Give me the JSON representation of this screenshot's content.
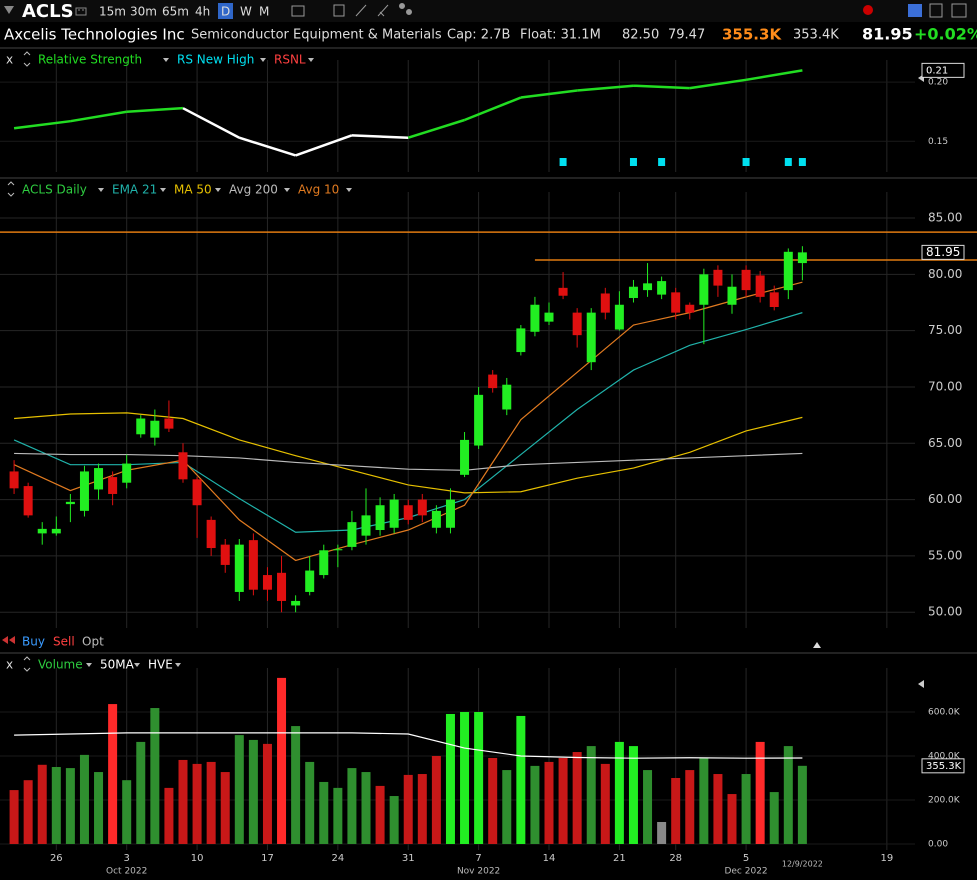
{
  "toolbar": {
    "symbol": "ACLS",
    "intervals": [
      "15m",
      "30m",
      "65m",
      "4h",
      "D",
      "W",
      "M"
    ],
    "active_interval": "D"
  },
  "quote": {
    "name": "Axcelis Technologies Inc",
    "industry": "Semiconductor Equipment & Materials",
    "cap": "Cap: 2.7B",
    "float": "Float: 31.1M",
    "high": "82.50",
    "low": "79.47",
    "volume": "355.3K",
    "avg_volume": "353.4K",
    "last": "81.95",
    "change": "+0.02%"
  },
  "close_label": "x",
  "trade_buttons": [
    "Buy",
    "Sell",
    "Opt"
  ],
  "chart_data": [
    {
      "type": "line",
      "xlim": [
        -1,
        64
      ],
      "ylim": [
        0.124,
        0.212
      ],
      "yticks": [
        0.15,
        {
          "value": 0.2,
          "label": "0.20"
        }
      ],
      "series": [
        {
          "name": "Relative Strength",
          "color": "#22dd22",
          "x": [
            0,
            4,
            8,
            12,
            16,
            20,
            24,
            28,
            32,
            36,
            40,
            44,
            48,
            52,
            56
          ],
          "values": [
            0.161,
            0.167,
            0.175,
            0.178,
            0.153,
            0.138,
            0.155,
            0.153,
            0.168,
            0.187,
            0.193,
            0.197,
            0.195,
            0.202,
            0.21
          ],
          "point_colors": [
            "#ffffff",
            "#22dd22",
            "#22dd22",
            "#22dd22",
            "#ffffff",
            "#ffffff",
            "#ffffff",
            "#ffffff",
            "#22dd22",
            "#22dd22",
            "#22dd22",
            "#22dd22",
            "#22dd22",
            "#22dd22",
            "#22dd22"
          ]
        }
      ],
      "markers": {
        "name": "RS New High",
        "color": "#00e0f0",
        "x": [
          39,
          44,
          46,
          52,
          55,
          56
        ]
      },
      "legend_extra": [
        {
          "name": "RSNL",
          "color": "#ff4040"
        }
      ]
    },
    {
      "type": "candlestick",
      "xlim": [
        -1,
        64
      ],
      "ylim": [
        48.6,
        86.6
      ],
      "yticks": [
        {
          "value": 50,
          "label": "50.00"
        },
        {
          "value": 55,
          "label": "55.00"
        },
        {
          "value": 60,
          "label": "60.00"
        },
        {
          "value": 65,
          "label": "65.00"
        },
        {
          "value": 70,
          "label": "70.00"
        },
        {
          "value": 75,
          "label": "75.00"
        },
        {
          "value": 80,
          "label": "80.00"
        },
        {
          "value": 85,
          "label": "85.00"
        }
      ],
      "grid": true,
      "series": [
        {
          "name": "ACLS Daily",
          "color": "#2ecc40",
          "up_color": "#22ee22",
          "down_color": "#e01010",
          "open": [
            62.5,
            61.2,
            57.0,
            57.0,
            59.6,
            59.0,
            60.9,
            62.0,
            61.5,
            65.8,
            65.5,
            67.2,
            64.2,
            61.8,
            58.2,
            56.0,
            51.8,
            56.4,
            53.3,
            53.5,
            50.6,
            51.8,
            53.3,
            55.5,
            55.8,
            56.8,
            57.3,
            57.5,
            59.5,
            60.0,
            57.5,
            57.5,
            62.2,
            64.8,
            71.1,
            68.0,
            73.1,
            74.9,
            75.8,
            78.8,
            76.6,
            72.2,
            78.3,
            75.1,
            77.9,
            78.6,
            78.2,
            78.4,
            77.3,
            77.3,
            80.4,
            77.3,
            80.4,
            79.9,
            78.4,
            78.6,
            81.0
          ],
          "high": [
            63.5,
            61.5,
            58.0,
            58.5,
            60.5,
            63.0,
            63.2,
            62.5,
            64.0,
            67.5,
            68.0,
            68.8,
            65.0,
            62.0,
            58.5,
            56.5,
            56.5,
            57.0,
            54.0,
            55.0,
            51.5,
            55.0,
            56.0,
            56.0,
            59.0,
            61.0,
            60.2,
            60.5,
            60.0,
            60.5,
            59.5,
            61.0,
            66.0,
            70.0,
            71.5,
            70.8,
            75.5,
            78.0,
            77.5,
            80.2,
            77.0,
            77.0,
            78.8,
            78.5,
            79.5,
            81.0,
            79.8,
            78.8,
            77.5,
            80.5,
            80.8,
            80.0,
            80.8,
            80.3,
            79.0,
            82.3,
            82.5
          ],
          "low": [
            60.5,
            58.4,
            56.0,
            56.8,
            58.0,
            58.5,
            60.0,
            59.5,
            61.0,
            65.5,
            64.8,
            66.0,
            61.5,
            56.6,
            55.0,
            53.5,
            51.0,
            51.5,
            51.0,
            50.0,
            50.0,
            51.5,
            53.0,
            54.0,
            55.5,
            56.0,
            56.8,
            57.0,
            57.8,
            58.0,
            57.0,
            57.0,
            62.0,
            64.5,
            69.5,
            67.5,
            72.8,
            74.5,
            75.5,
            77.8,
            73.5,
            71.5,
            76.0,
            75.0,
            77.5,
            78.0,
            77.8,
            76.0,
            76.0,
            73.8,
            78.0,
            76.5,
            78.0,
            77.5,
            76.8,
            77.8,
            79.47
          ],
          "close": [
            61.0,
            58.6,
            57.4,
            57.4,
            59.8,
            62.5,
            62.8,
            60.5,
            63.2,
            67.2,
            67.0,
            66.3,
            61.8,
            59.5,
            55.7,
            54.2,
            56.0,
            52.0,
            52.0,
            51.0,
            51.0,
            53.7,
            55.5,
            55.6,
            58.0,
            58.6,
            59.5,
            60.0,
            58.2,
            58.6,
            59.0,
            60.0,
            65.3,
            69.3,
            69.9,
            70.2,
            75.2,
            77.3,
            76.6,
            78.1,
            74.6,
            76.6,
            76.6,
            77.3,
            78.9,
            79.2,
            79.4,
            76.6,
            76.6,
            80.0,
            79.0,
            78.9,
            78.6,
            78.0,
            77.1,
            82.0,
            81.95
          ]
        }
      ],
      "lines": [
        {
          "name": "EMA 21",
          "color": "#20b2aa",
          "x": [
            0,
            4,
            8,
            12,
            16,
            20,
            24,
            28,
            32,
            36,
            40,
            44,
            48,
            52,
            56
          ],
          "values": [
            65.3,
            63.1,
            63.1,
            63.3,
            60.1,
            57.1,
            57.3,
            58.4,
            60.0,
            64.0,
            68.0,
            71.5,
            73.7,
            75.1,
            76.6
          ]
        },
        {
          "name": "MA 50",
          "color": "#e6c000",
          "x": [
            0,
            4,
            8,
            12,
            16,
            20,
            24,
            28,
            32,
            36,
            40,
            44,
            48,
            52,
            56
          ],
          "values": [
            67.2,
            67.6,
            67.7,
            67.2,
            65.3,
            63.9,
            62.6,
            61.3,
            60.6,
            60.7,
            61.9,
            62.8,
            64.2,
            66.1,
            67.3
          ]
        },
        {
          "name": "Avg 200",
          "color": "#bbbbbb",
          "x": [
            0,
            4,
            8,
            12,
            16,
            20,
            24,
            28,
            32,
            36,
            40,
            44,
            48,
            52,
            56
          ],
          "values": [
            64.1,
            64.0,
            64.0,
            63.9,
            63.7,
            63.3,
            63.0,
            62.7,
            62.6,
            63.1,
            63.3,
            63.5,
            63.7,
            63.9,
            64.1
          ]
        },
        {
          "name": "Avg 10",
          "color": "#e07a20",
          "x": [
            0,
            4,
            8,
            12,
            16,
            20,
            24,
            28,
            32,
            36,
            40,
            44,
            48,
            52,
            56
          ],
          "values": [
            63.1,
            60.8,
            62.6,
            63.5,
            58.2,
            54.6,
            56.0,
            57.3,
            59.5,
            67.1,
            71.3,
            75.5,
            76.6,
            78.0,
            79.3
          ]
        }
      ],
      "hlines": [
        {
          "value": 83.75,
          "color": "#e07a10"
        },
        {
          "value": 81.27,
          "color": "#e07a10",
          "from_x": 37
        }
      ]
    },
    {
      "type": "bar",
      "xlim": [
        -1,
        64
      ],
      "ylim": [
        -27300,
        763600
      ],
      "yticks": [
        {
          "value": 0,
          "label": "0.00"
        },
        {
          "value": 200000,
          "label": "200.0K"
        },
        {
          "value": 400000,
          "label": "400.0K"
        },
        {
          "value": 600000,
          "label": "600.0K"
        }
      ],
      "xticks": [
        {
          "value": 3,
          "label": "26"
        },
        {
          "value": 8,
          "label": "3"
        },
        {
          "value": 13,
          "label": "10"
        },
        {
          "value": 18,
          "label": "17"
        },
        {
          "value": 23,
          "label": "24"
        },
        {
          "value": 28,
          "label": "31"
        },
        {
          "value": 33,
          "label": "7"
        },
        {
          "value": 38,
          "label": "14"
        },
        {
          "value": 43,
          "label": "21"
        },
        {
          "value": 47,
          "label": "28"
        },
        {
          "value": 52,
          "label": "5"
        },
        {
          "value": 62,
          "label": "19"
        }
      ],
      "month_labels": [
        {
          "value": 8,
          "label": "Oct 2022"
        },
        {
          "value": 33,
          "label": "Nov 2022"
        },
        {
          "value": 52,
          "label": "Dec 2022"
        }
      ],
      "date_marker": {
        "value": 56,
        "label": "12/9/2022"
      },
      "series": [
        {
          "name": "Volume",
          "color": "#2ecc40",
          "values": [
            245000,
            290000,
            360000,
            350000,
            345000,
            405000,
            327000,
            636000,
            290000,
            464000,
            618000,
            255000,
            382000,
            364000,
            373000,
            327000,
            495000,
            473000,
            455000,
            755000,
            536000,
            373000,
            282000,
            255000,
            345000,
            327000,
            264000,
            218000,
            314000,
            318000,
            400000,
            591000,
            600000,
            600000,
            391000,
            336000,
            582000,
            355000,
            373000,
            391000,
            418000,
            445000,
            364000,
            464000,
            445000,
            336000,
            100000,
            300000,
            336000,
            391000,
            318000,
            227000,
            318000,
            464000,
            236000,
            445000,
            355300
          ],
          "value_labels": [
            null,
            null,
            null,
            null,
            null,
            null,
            null,
            null,
            null,
            null,
            null,
            null,
            null,
            null,
            null,
            null,
            null,
            null,
            null,
            null,
            null,
            null,
            null,
            null,
            null,
            null,
            null,
            null,
            null,
            null,
            null,
            null,
            null,
            null,
            null,
            null,
            null,
            null,
            null,
            null,
            null,
            null,
            null,
            null,
            null,
            null,
            null,
            null,
            null,
            null,
            null,
            null,
            null,
            null,
            null,
            null,
            "355.3K"
          ],
          "colors": [
            "#c81818",
            "#c81818",
            "#c81818",
            "#2f8f2f",
            "#2f8f2f",
            "#2f8f2f",
            "#2f8f2f",
            "#ff2a2a",
            "#2f8f2f",
            "#2f8f2f",
            "#2f8f2f",
            "#c81818",
            "#c81818",
            "#c81818",
            "#c81818",
            "#c81818",
            "#2f8f2f",
            "#2f8f2f",
            "#c81818",
            "#ff2a2a",
            "#2f8f2f",
            "#2f8f2f",
            "#2f8f2f",
            "#2f8f2f",
            "#2f8f2f",
            "#2f8f2f",
            "#c81818",
            "#2f8f2f",
            "#c81818",
            "#c81818",
            "#c81818",
            "#22ee22",
            "#22ee22",
            "#22ee22",
            "#c81818",
            "#2f8f2f",
            "#22ee22",
            "#2f8f2f",
            "#c81818",
            "#c81818",
            "#c81818",
            "#2f8f2f",
            "#c81818",
            "#22ee22",
            "#22ee22",
            "#2f8f2f",
            "#888888",
            "#c81818",
            "#c81818",
            "#2f8f2f",
            "#c81818",
            "#c81818",
            "#2f8f2f",
            "#ff2a2a",
            "#2f8f2f",
            "#2f8f2f",
            "#2f8f2f"
          ]
        }
      ],
      "lines": [
        {
          "name": "50MA",
          "color": "#ffffff",
          "x": [
            0,
            4,
            8,
            12,
            16,
            20,
            24,
            28,
            32,
            36,
            40,
            44,
            48,
            52,
            56
          ],
          "values": [
            495000,
            500000,
            505000,
            505000,
            505000,
            505000,
            505000,
            500000,
            436000,
            400000,
            393000,
            390000,
            392000,
            390000,
            391000
          ]
        }
      ],
      "legend_extra": [
        {
          "name": "HVE",
          "color": "#ffffff"
        }
      ]
    }
  ]
}
